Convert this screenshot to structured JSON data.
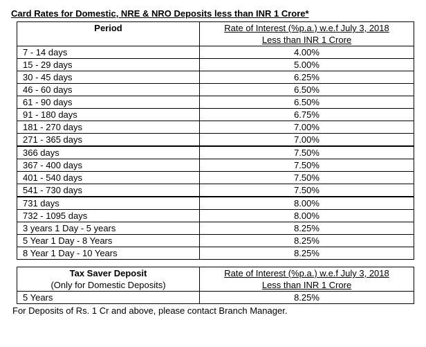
{
  "title": "Card Rates for Domestic, NRE & NRO Deposits less than INR 1 Crore*",
  "main_table": {
    "header_period": "Period",
    "header_rate_line1": "Rate of Interest (%p.a.) w.e.f July 3, 2018",
    "header_rate_line2": "Less than INR 1 Crore",
    "groups": [
      [
        {
          "period": "7 - 14 days",
          "rate": "4.00%"
        },
        {
          "period": "15 - 29 days",
          "rate": "5.00%"
        },
        {
          "period": "30 - 45 days",
          "rate": "6.25%"
        },
        {
          "period": "46 - 60 days",
          "rate": "6.50%"
        },
        {
          "period": "61 - 90 days",
          "rate": "6.50%"
        },
        {
          "period": "91 - 180 days",
          "rate": "6.75%"
        },
        {
          "period": "181 - 270 days",
          "rate": "7.00%"
        },
        {
          "period": "271 - 365 days",
          "rate": "7.00%"
        }
      ],
      [
        {
          "period": "366 days",
          "rate": "7.50%"
        },
        {
          "period": "367 - 400 days",
          "rate": "7.50%"
        },
        {
          "period": "401 - 540 days",
          "rate": "7.50%"
        },
        {
          "period": "541 - 730 days",
          "rate": "7.50%"
        }
      ],
      [
        {
          "period": "731 days",
          "rate": "8.00%"
        },
        {
          "period": "732 - 1095 days",
          "rate": "8.00%"
        },
        {
          "period": "3 years 1 Day - 5 years",
          "rate": "8.25%"
        },
        {
          "period": "5 Year 1 Day - 8 Years",
          "rate": "8.25%"
        },
        {
          "period": "8 Year 1 Day - 10 Years",
          "rate": "8.25%"
        }
      ]
    ]
  },
  "tax_table": {
    "header_left_bold": "Tax Saver Deposit",
    "header_left_sub": "(Only for Domestic Deposits)",
    "header_rate_line1": "Rate of Interest (%p.a.) w.e.f July 3, 2018",
    "header_rate_line2": "Less than INR 1 Crore",
    "rows": [
      {
        "period": "5 Years",
        "rate": "8.25%"
      }
    ]
  },
  "footnote": "For Deposits of Rs. 1 Cr and above, please contact Branch Manager."
}
